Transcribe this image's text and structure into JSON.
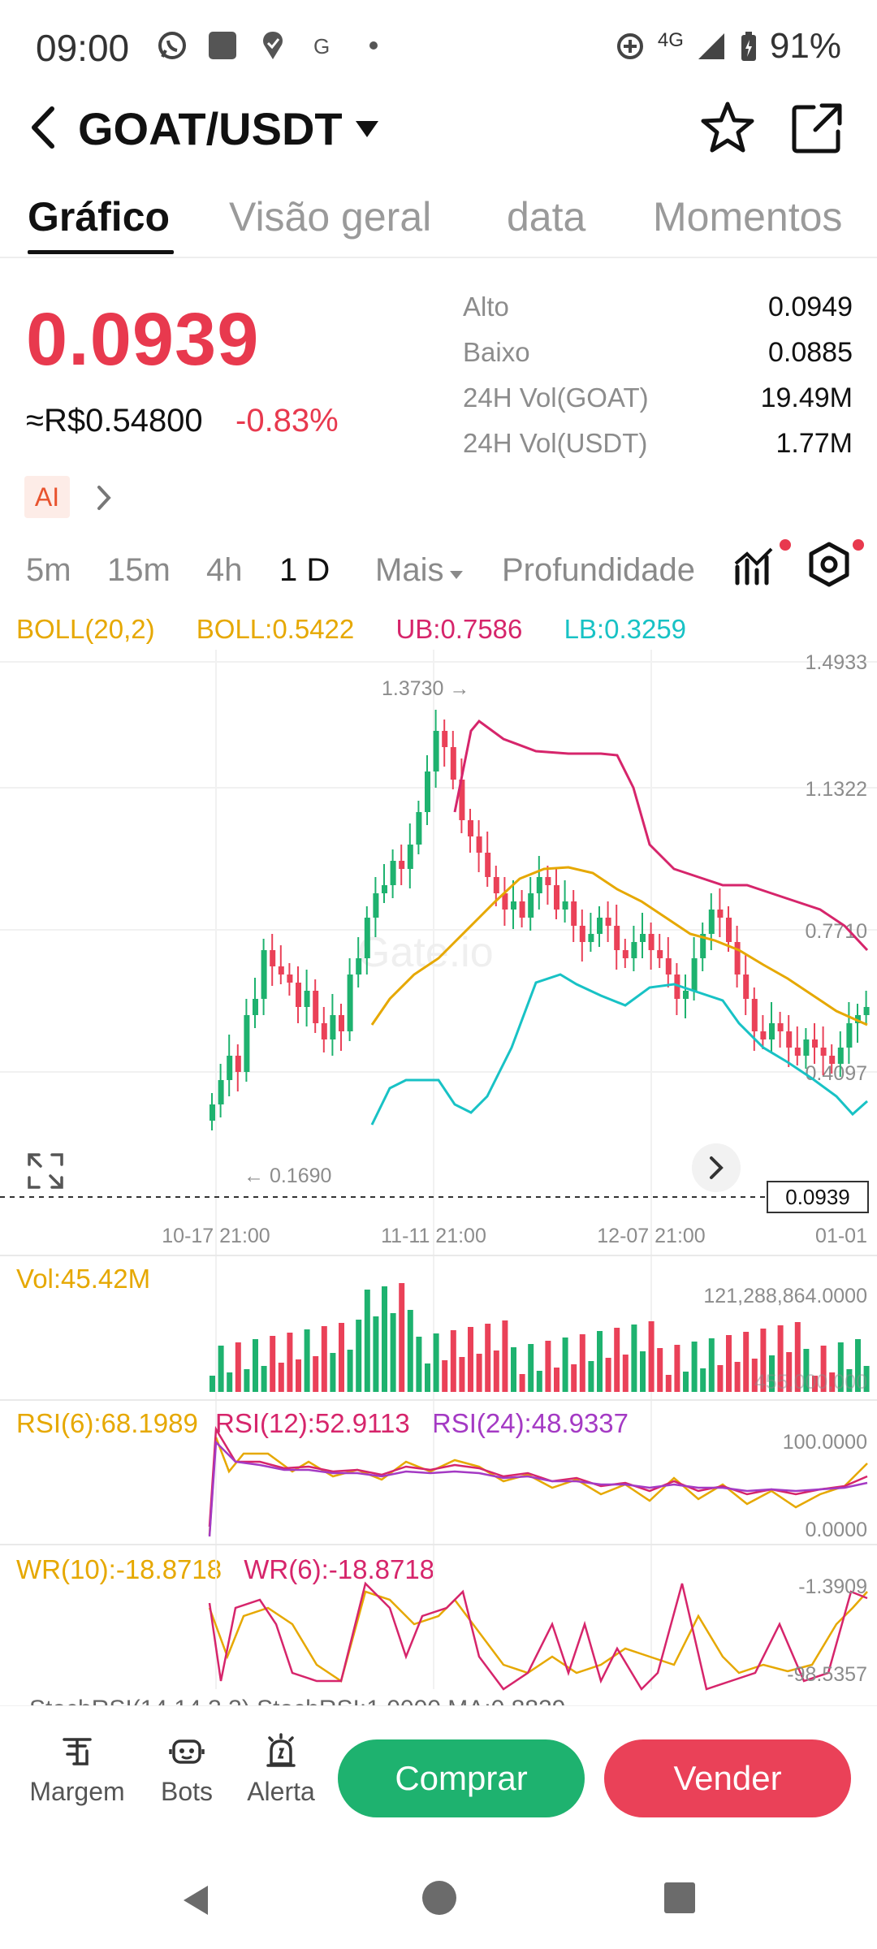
{
  "status_bar": {
    "time": "09:00",
    "network": "4G",
    "battery": "91%"
  },
  "header": {
    "pair": "GOAT/USDT"
  },
  "tabs": [
    {
      "label": "Gráfico",
      "active": true
    },
    {
      "label": "Visão geral",
      "active": false
    },
    {
      "label": "data",
      "active": false
    },
    {
      "label": "Momentos",
      "active": false
    }
  ],
  "ticker": {
    "price": "0.0939",
    "fiat": "≈R$0.54800",
    "change": "-0.83%",
    "stats": [
      {
        "label": "Alto",
        "value": "0.0949"
      },
      {
        "label": "Baixo",
        "value": "0.0885"
      },
      {
        "label": "24H Vol(GOAT)",
        "value": "19.49M"
      },
      {
        "label": "24H Vol(USDT)",
        "value": "1.77M"
      }
    ]
  },
  "ai_badge": "AI",
  "intervals": [
    {
      "label": "5m",
      "active": false
    },
    {
      "label": "15m",
      "active": false
    },
    {
      "label": "4h",
      "active": false
    },
    {
      "label": "1 D",
      "active": true
    },
    {
      "label": "Mais",
      "active": false
    },
    {
      "label": "Profundidade",
      "active": false
    }
  ],
  "indicators": {
    "boll": {
      "name": "BOLL(20,2)",
      "mid": "BOLL:0.5422",
      "ub": "UB:0.7586",
      "lb": "LB:0.3259"
    },
    "vol": "Vol:45.42M",
    "rsi": {
      "r6": "RSI(6):68.1989",
      "r12": "RSI(12):52.9113",
      "r24": "RSI(24):48.9337"
    },
    "wr": {
      "w10": "WR(10):-18.8718",
      "w6": "WR(6):-18.8718"
    },
    "stoch_truncated": "StochRSI(14,14,3,3)  StochRSI:1.0000  MA:0.8829"
  },
  "colors": {
    "up": "#1eb26f",
    "down": "#ea4158",
    "boll_mid": "#e6a800",
    "boll_ub": "#d6256b",
    "boll_lb": "#18c2c5",
    "rsi_purple": "#a43ac4"
  },
  "chart_data": {
    "type": "candlestick",
    "price_axis": [
      "1.4933",
      "1.1322",
      "0.7710",
      "0.4097"
    ],
    "date_axis": [
      "10-17 21:00",
      "11-11 21:00",
      "12-07 21:00",
      "01-01"
    ],
    "max_label": "1.3730 →",
    "min_label": "← 0.1690",
    "current_price": "0.0939",
    "watermark": "Gate.io",
    "vol_axis": [
      "121,288,864.0000",
      "455,000,000"
    ],
    "rsi_axis": [
      "100.0000",
      "0.0000"
    ],
    "wr_axis": [
      "-1.3909",
      "-98.5357"
    ]
  },
  "bottom_actions": [
    {
      "label": "Margem",
      "icon": "margin-icon"
    },
    {
      "label": "Bots",
      "icon": "robot-icon"
    },
    {
      "label": "Alerta",
      "icon": "alarm-icon"
    }
  ],
  "buy_label": "Comprar",
  "sell_label": "Vender"
}
